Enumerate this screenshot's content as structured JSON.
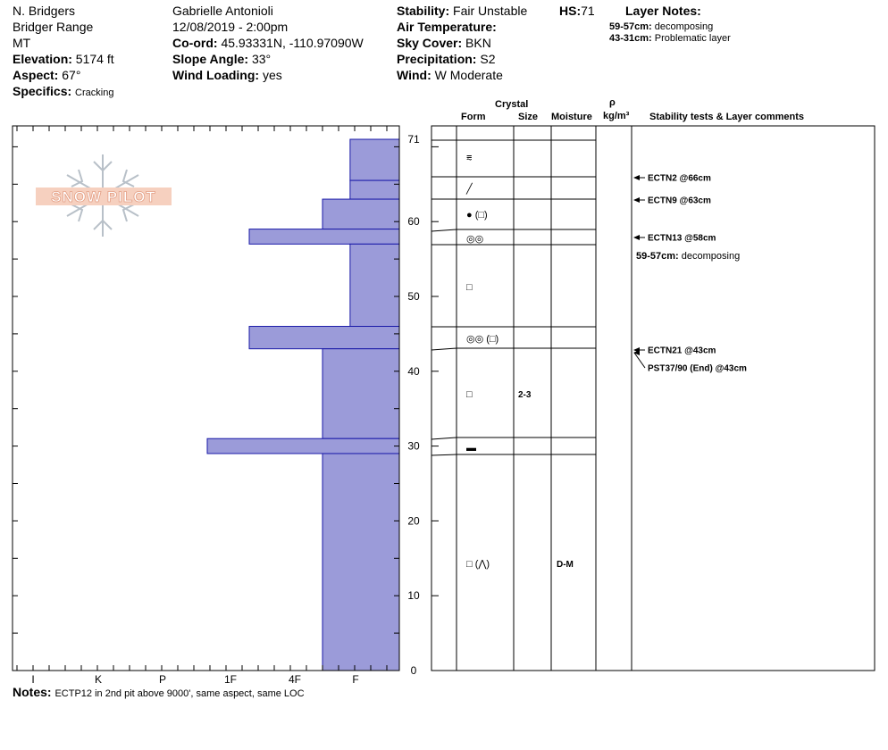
{
  "header": {
    "observer": "N. Bridgers",
    "range": "Bridger Range",
    "state": "MT",
    "elevation_label": "Elevation:",
    "elevation": "5174 ft",
    "aspect_label": "Aspect:",
    "aspect": "67°",
    "specifics_label": "Specifics:",
    "specifics": "Cracking",
    "author": "Gabrielle Antonioli",
    "datetime": "12/08/2019 - 2:00pm",
    "coord_label": "Co-ord:",
    "coord": "45.93331N, -110.97090W",
    "slope_label": "Slope Angle:",
    "slope": "33°",
    "wind_loading_label": "Wind Loading:",
    "wind_loading": "yes",
    "stability_label": "Stability:",
    "stability": "Fair Unstable",
    "hs_label": "HS:",
    "hs": "71",
    "air_temp_label": "Air Temperature:",
    "sky_label": "Sky Cover:",
    "sky": "BKN",
    "precip_label": "Precipitation:",
    "precip": "S2",
    "wind_label": "Wind:",
    "wind": "W Moderate",
    "layer_notes_label": "Layer Notes:",
    "layer_notes": [
      {
        "range": "59-57cm:",
        "text": "decomposing"
      },
      {
        "range": "43-31cm:",
        "text": "Problematic layer"
      }
    ]
  },
  "logo_text": "SNOW PILOT",
  "columns": {
    "crystal": "Crystal",
    "form": "Form",
    "size": "Size",
    "moisture": "Moisture",
    "rho": "ρ",
    "density_unit": "kg/m³",
    "stability": "Stability tests & Layer comments"
  },
  "notes_label": "Notes:",
  "notes": "ECTP12 in 2nd pit above 9000', same aspect, same LOC",
  "colors": {
    "hardness_fill": "#9b9bd9",
    "hardness_line": "#1a1aa8"
  },
  "chart_data": {
    "type": "bar",
    "title": "",
    "ylabel": "",
    "ylim": [
      0,
      71
    ],
    "y_ticks": [
      0,
      10,
      20,
      30,
      40,
      50,
      60,
      71
    ],
    "hardness_scale": [
      "I",
      "K",
      "P",
      "1F",
      "4F",
      "F"
    ],
    "layers": [
      {
        "top": 71,
        "bottom": 65.5,
        "hardness": "F-"
      },
      {
        "top": 65.5,
        "bottom": 63,
        "hardness": "F-"
      },
      {
        "top": 63,
        "bottom": 59,
        "hardness": "F"
      },
      {
        "top": 59,
        "bottom": 57,
        "hardness": "1F-"
      },
      {
        "top": 57,
        "bottom": 46,
        "hardness": "F-"
      },
      {
        "top": 46,
        "bottom": 43,
        "hardness": "1F-"
      },
      {
        "top": 43,
        "bottom": 31,
        "hardness": "F"
      },
      {
        "top": 31,
        "bottom": 29,
        "hardness": "1F+"
      },
      {
        "top": 29,
        "bottom": 0,
        "hardness": "F"
      }
    ],
    "crystal_rows": [
      {
        "height": 68.5,
        "form": "decomposing-fragments",
        "size": "",
        "moisture": ""
      },
      {
        "height": 64.5,
        "form": "rounding-facets",
        "size": "",
        "moisture": ""
      },
      {
        "height": 60.5,
        "form": "melt-freeze",
        "secondary": "faceted",
        "size": "",
        "moisture": ""
      },
      {
        "height": 58,
        "form": "rounded",
        "size": "",
        "moisture": ""
      },
      {
        "height": 51.5,
        "form": "faceted",
        "size": "",
        "moisture": ""
      },
      {
        "height": 44.5,
        "form": "rounded",
        "secondary": "faceted",
        "size": "",
        "moisture": ""
      },
      {
        "height": 37,
        "form": "faceted",
        "size": "2-3",
        "moisture": ""
      },
      {
        "height": 30,
        "form": "ice-layer",
        "size": "",
        "moisture": ""
      },
      {
        "height": 14.5,
        "form": "faceted",
        "secondary": "depth-hoar",
        "size": "",
        "moisture": "D-M"
      }
    ],
    "stability_tests": [
      {
        "height": 66,
        "label": "ECTN2 @66cm"
      },
      {
        "height": 63,
        "label": "ECTN9 @63cm"
      },
      {
        "height": 58,
        "label": "ECTN13 @58cm"
      },
      {
        "height": 43,
        "label": "ECTN21 @43cm"
      },
      {
        "height": 43,
        "label": "PST37/90 (End) @43cm"
      }
    ],
    "layer_comments": [
      {
        "range": "59-57cm:",
        "text": "decomposing"
      }
    ]
  }
}
